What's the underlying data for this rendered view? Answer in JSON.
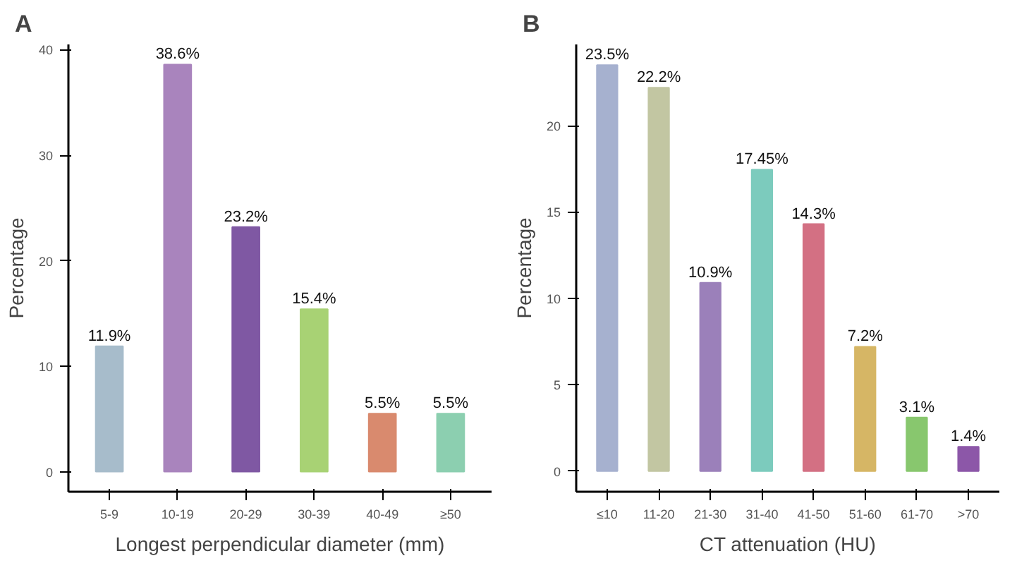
{
  "chart_data": [
    {
      "type": "bar",
      "title": "A",
      "xlabel": "Longest perpendicular diameter (mm)",
      "ylabel": "Percentage",
      "categories": [
        "5-9",
        "10-19",
        "20-29",
        "30-39",
        "40-49",
        "≥50"
      ],
      "values": [
        11.9,
        38.6,
        23.2,
        15.4,
        5.5,
        5.5
      ],
      "colors": [
        "#a7bccb",
        "#a984bd",
        "#7f58a3",
        "#a8d274",
        "#d98a6e",
        "#8ccfb0"
      ],
      "value_labels": [
        "11.9%",
        "38.6%",
        "23.2%",
        "15.4%",
        "5.5%",
        "5.5%"
      ],
      "ylim": [
        -1.9,
        40.5
      ],
      "yticks": [
        0,
        10,
        20,
        30,
        40
      ]
    },
    {
      "type": "bar",
      "title": "B",
      "xlabel": "CT attenuation (HU)",
      "ylabel": "Percentage",
      "categories": [
        "≤10",
        "11-20",
        "21-30",
        "31-40",
        "41-50",
        "51-60",
        "61-70",
        ">70"
      ],
      "values": [
        23.5,
        22.2,
        10.9,
        17.45,
        14.3,
        7.2,
        3.1,
        1.4
      ],
      "colors": [
        "#a6b1cf",
        "#c2c6a2",
        "#9b80ba",
        "#7ccbbd",
        "#d37083",
        "#d6b665",
        "#88c76e",
        "#8c57a8"
      ],
      "value_labels": [
        "23.5%",
        "22.2%",
        "10.9%",
        "17.45%",
        "14.3%",
        "7.2%",
        "3.1%",
        "1.4%"
      ],
      "ylim": [
        -1.2,
        24.7
      ],
      "yticks": [
        0,
        5,
        10,
        15,
        20
      ]
    }
  ]
}
